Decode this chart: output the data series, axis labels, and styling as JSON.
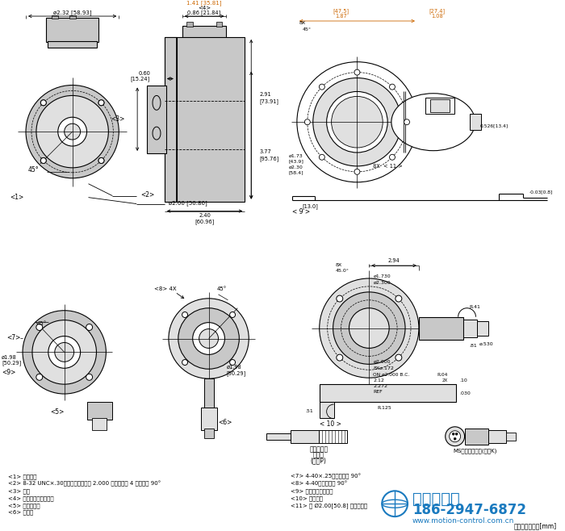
{
  "bg_color": "#ffffff",
  "line_color": "#000000",
  "red_dim_color": "#cc2200",
  "orange_dim_color": "#cc6600",
  "gray_fill": "#c8c8c8",
  "light_gray": "#e0e0e0",
  "mid_gray": "#b0b0b0",
  "watermark_color": "#1a7abf",
  "footer_text": "尺寸單位：英寸[mm]",
  "company_phone": "186-2947-6872",
  "company_web": "www.motion-control.com.cn",
  "company_name": "西安德伍拓"
}
